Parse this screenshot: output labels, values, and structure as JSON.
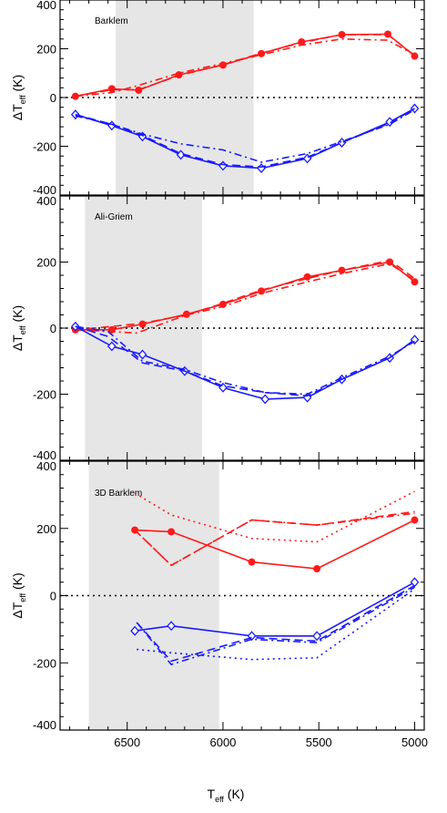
{
  "colors": {
    "red": "#ff1a1a",
    "blue": "#1a1aff",
    "shade": "#e6e6e6",
    "axis": "#000000"
  },
  "figure": {
    "xlabel_main": "T",
    "xlabel_sub": "eff",
    "xlabel_unit": " (K)",
    "ylabel_main": "ΔT",
    "ylabel_sub": "eff",
    "ylabel_unit": " (K)"
  },
  "chart_data": [
    {
      "type": "line",
      "title": "Barklem",
      "xlim": [
        6850,
        4950
      ],
      "ylim": [
        -400,
        400
      ],
      "x_ticks": [
        "6500",
        "6000",
        "5500",
        "5000"
      ],
      "x_tick_values": [
        6500,
        6000,
        5500,
        5000
      ],
      "y_ticks": [
        "400",
        "200",
        "0",
        "-200",
        "-400"
      ],
      "y_tick_values": [
        400,
        200,
        0,
        -200,
        -400
      ],
      "shade_x": [
        6560,
        5840
      ],
      "series": [
        {
          "color": "red",
          "style": "solid",
          "marker": "circle",
          "x": [
            6770,
            6580,
            6440,
            6230,
            6000,
            5800,
            5590,
            5380,
            5140,
            5000
          ],
          "y": [
            5,
            36,
            30,
            93,
            133,
            180,
            228,
            258,
            260,
            170
          ]
        },
        {
          "color": "red",
          "style": "dashed",
          "x": [
            6770,
            6580,
            6440,
            6230,
            6000,
            5800,
            5590,
            5380,
            5140,
            5000
          ],
          "y": [
            5,
            32,
            32,
            90,
            135,
            182,
            225,
            258,
            258,
            172
          ]
        },
        {
          "color": "red",
          "style": "dashdot",
          "x": [
            6770,
            6580,
            6440,
            6230,
            6000,
            5800,
            5590,
            5380,
            5140,
            5000
          ],
          "y": [
            5,
            20,
            50,
            100,
            140,
            175,
            215,
            240,
            235,
            175
          ]
        },
        {
          "color": "blue",
          "style": "solid",
          "marker": "diamond",
          "x": [
            6770,
            6580,
            6420,
            6220,
            6000,
            5800,
            5560,
            5380,
            5130,
            5000
          ],
          "y": [
            -70,
            -115,
            -160,
            -235,
            -280,
            -290,
            -250,
            -185,
            -100,
            -45
          ]
        },
        {
          "color": "blue",
          "style": "dashed",
          "x": [
            6770,
            6580,
            6420,
            6220,
            6000,
            5800,
            5560,
            5380,
            5130,
            5000
          ],
          "y": [
            -70,
            -110,
            -155,
            -230,
            -275,
            -285,
            -245,
            -185,
            -105,
            -45
          ]
        },
        {
          "color": "blue",
          "style": "dashdot",
          "x": [
            6770,
            6580,
            6420,
            6220,
            6000,
            5800,
            5560,
            5380,
            5130,
            5000
          ],
          "y": [
            -75,
            -110,
            -150,
            -190,
            -215,
            -265,
            -230,
            -180,
            -110,
            -50
          ]
        }
      ]
    },
    {
      "type": "line",
      "title": "Ali-Griem",
      "xlim": [
        6850,
        4950
      ],
      "ylim": [
        -400,
        400
      ],
      "x_ticks": [
        "6500",
        "6000",
        "5500",
        "5000"
      ],
      "x_tick_values": [
        6500,
        6000,
        5500,
        5000
      ],
      "y_ticks": [
        "400",
        "200",
        "0",
        "-200",
        "-400"
      ],
      "y_tick_values": [
        400,
        200,
        0,
        -200,
        -400
      ],
      "shade_x": [
        6720,
        6110
      ],
      "series": [
        {
          "color": "red",
          "style": "solid",
          "marker": "circle",
          "x": [
            6770,
            6580,
            6420,
            6190,
            6000,
            5800,
            5560,
            5380,
            5130,
            5000
          ],
          "y": [
            -5,
            -5,
            12,
            42,
            72,
            112,
            155,
            175,
            200,
            140
          ]
        },
        {
          "color": "red",
          "style": "dashed",
          "x": [
            6770,
            6580,
            6420,
            6190,
            6000,
            5800,
            5560,
            5380,
            5130,
            5000
          ],
          "y": [
            -5,
            5,
            15,
            40,
            75,
            115,
            150,
            175,
            205,
            150
          ]
        },
        {
          "color": "red",
          "style": "dashdot",
          "x": [
            6770,
            6600,
            6450,
            6190,
            6000,
            5800,
            5560,
            5380,
            5130,
            5000
          ],
          "y": [
            -5,
            -10,
            -15,
            40,
            65,
            105,
            140,
            165,
            195,
            145
          ]
        },
        {
          "color": "blue",
          "style": "solid",
          "marker": "diamond",
          "x": [
            6770,
            6580,
            6420,
            6200,
            6000,
            5780,
            5560,
            5380,
            5130,
            5000
          ],
          "y": [
            5,
            -55,
            -80,
            -130,
            -180,
            -215,
            -210,
            -155,
            -90,
            -35
          ]
        },
        {
          "color": "blue",
          "style": "dashed",
          "x": [
            6770,
            6600,
            6420,
            6200,
            6000,
            5780,
            5560,
            5380,
            5130,
            5000
          ],
          "y": [
            5,
            -25,
            -105,
            -130,
            -175,
            -195,
            -205,
            -155,
            -90,
            -35
          ]
        },
        {
          "color": "blue",
          "style": "dashdot",
          "x": [
            6770,
            6600,
            6420,
            6200,
            6000,
            5780,
            5560,
            5380,
            5130,
            5000
          ],
          "y": [
            5,
            -10,
            -100,
            -125,
            -165,
            -195,
            -200,
            -150,
            -85,
            -40
          ]
        }
      ]
    },
    {
      "type": "line",
      "title": "3D Barklem",
      "xlim": [
        6850,
        4950
      ],
      "ylim": [
        -400,
        400
      ],
      "x_ticks": [
        "6500",
        "6000",
        "5500",
        "5000"
      ],
      "x_tick_values": [
        6500,
        6000,
        5500,
        5000
      ],
      "y_ticks": [
        "400",
        "200",
        "0",
        "-200",
        "-400"
      ],
      "y_tick_values": [
        400,
        200,
        0,
        -200,
        -400
      ],
      "shade_x": [
        6700,
        6020
      ],
      "series": [
        {
          "color": "red",
          "style": "solid",
          "marker": "circle",
          "x": [
            6460,
            6270,
            5850,
            5510,
            5000
          ],
          "y": [
            195,
            190,
            100,
            80,
            225
          ]
        },
        {
          "color": "red",
          "style": "dashed",
          "x": [
            6460,
            6270,
            5850,
            5510,
            5000
          ],
          "y": [
            195,
            90,
            225,
            210,
            250
          ]
        },
        {
          "color": "red",
          "style": "dashdot",
          "x": [
            6460,
            6270,
            5850,
            5510,
            5000
          ],
          "y": [
            195,
            90,
            225,
            210,
            245
          ]
        },
        {
          "color": "red",
          "style": "dotted",
          "x": [
            6460,
            6270,
            5850,
            5510,
            5000
          ],
          "y": [
            305,
            240,
            170,
            160,
            310
          ]
        },
        {
          "color": "blue",
          "style": "solid",
          "marker": "diamond",
          "x": [
            6460,
            6270,
            5850,
            5510,
            5000
          ],
          "y": [
            -105,
            -90,
            -120,
            -120,
            40
          ]
        },
        {
          "color": "blue",
          "style": "dashed",
          "x": [
            6450,
            6270,
            5850,
            5510,
            5000
          ],
          "y": [
            -80,
            -195,
            -125,
            -135,
            30
          ]
        },
        {
          "color": "blue",
          "style": "dashdot",
          "x": [
            6450,
            6270,
            5850,
            5510,
            5000
          ],
          "y": [
            -80,
            -205,
            -130,
            -140,
            25
          ]
        },
        {
          "color": "blue",
          "style": "dotted",
          "x": [
            6450,
            6270,
            5850,
            5510,
            5000
          ],
          "y": [
            -160,
            -170,
            -190,
            -185,
            20
          ]
        }
      ]
    }
  ]
}
